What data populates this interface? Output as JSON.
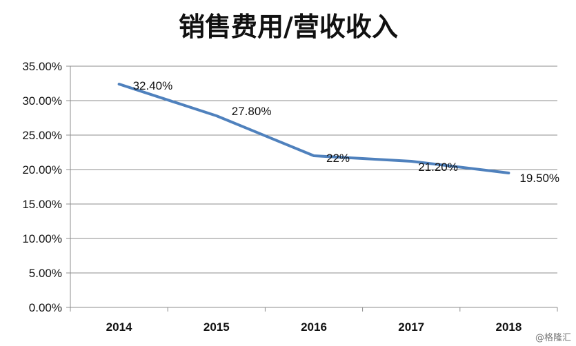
{
  "watermark": "@格隆汇",
  "colors": {
    "line": "#4f81bd",
    "grid": "#8c8c8c",
    "axis": "#8c8c8c",
    "text": "#111111"
  },
  "chart_data": {
    "type": "line",
    "title": "销售费用/营收收入",
    "xlabel": "",
    "ylabel": "",
    "categories": [
      "2014",
      "2015",
      "2016",
      "2017",
      "2018"
    ],
    "series": [
      {
        "values": [
          32.4,
          27.8,
          22.0,
          21.2,
          19.5
        ],
        "data_labels": [
          "32.40%",
          "27.80%",
          "22%",
          "21.20%",
          "19.50%"
        ]
      }
    ],
    "ylim": [
      0,
      35
    ],
    "y_ticks": [
      0,
      5,
      10,
      15,
      20,
      25,
      30,
      35
    ],
    "y_tick_labels": [
      "0.00%",
      "5.00%",
      "10.00%",
      "15.00%",
      "20.00%",
      "25.00%",
      "30.00%",
      "35.00%"
    ],
    "grid": "horizontal",
    "legend": "none"
  }
}
